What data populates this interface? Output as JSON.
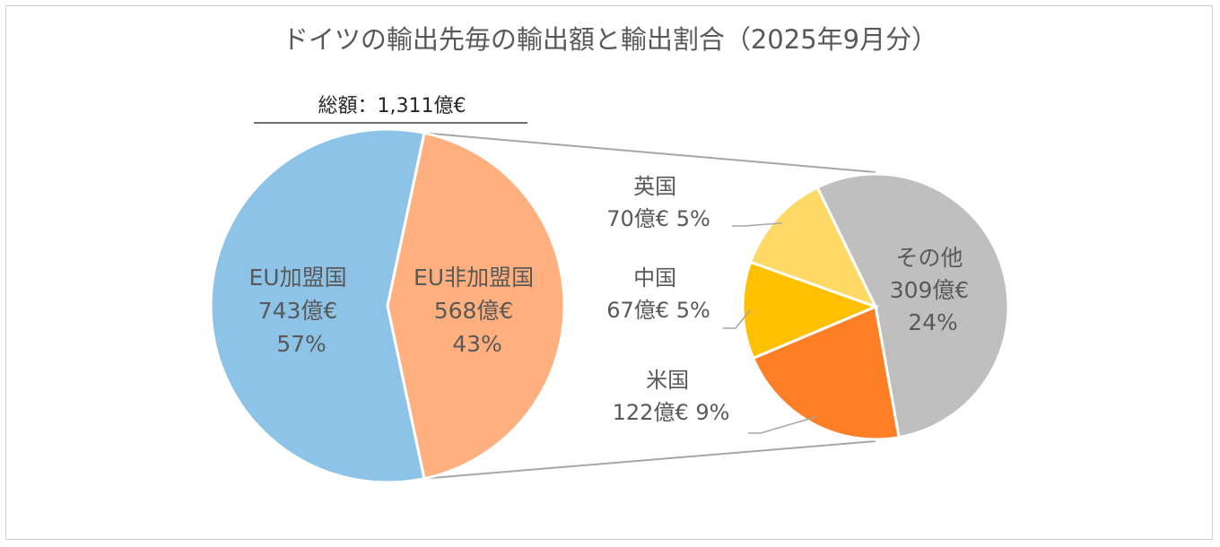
{
  "chart_data": {
    "type": "pie",
    "title": "ドイツの輸出先毎の輸出額と輸出割合（2025年9月分）",
    "total_label": "総額：1,311億€",
    "main_pie": {
      "slices": [
        {
          "name": "EU加盟国",
          "value_label": "743億€",
          "percent_label": "57%",
          "value": 743,
          "color": "#8DC3E6"
        },
        {
          "name": "EU非加盟国",
          "value_label": "568億€",
          "percent_label": "43%",
          "value": 568,
          "color": "#FFB07E"
        }
      ]
    },
    "breakdown_pie": {
      "slices": [
        {
          "name": "その他",
          "value_label": "309億€",
          "percent_label": "24%",
          "value": 309,
          "color": "#BFBFBF"
        },
        {
          "name": "米国",
          "value_label": "122億€",
          "percent_label": "9%",
          "value": 122,
          "color": "#FF7F27"
        },
        {
          "name": "中国",
          "value_label": "67億€",
          "percent_label": "5%",
          "value": 67,
          "color": "#FFC000"
        },
        {
          "name": "英国",
          "value_label": "70億€",
          "percent_label": "5%",
          "value": 70,
          "color": "#FFD966"
        }
      ]
    }
  }
}
